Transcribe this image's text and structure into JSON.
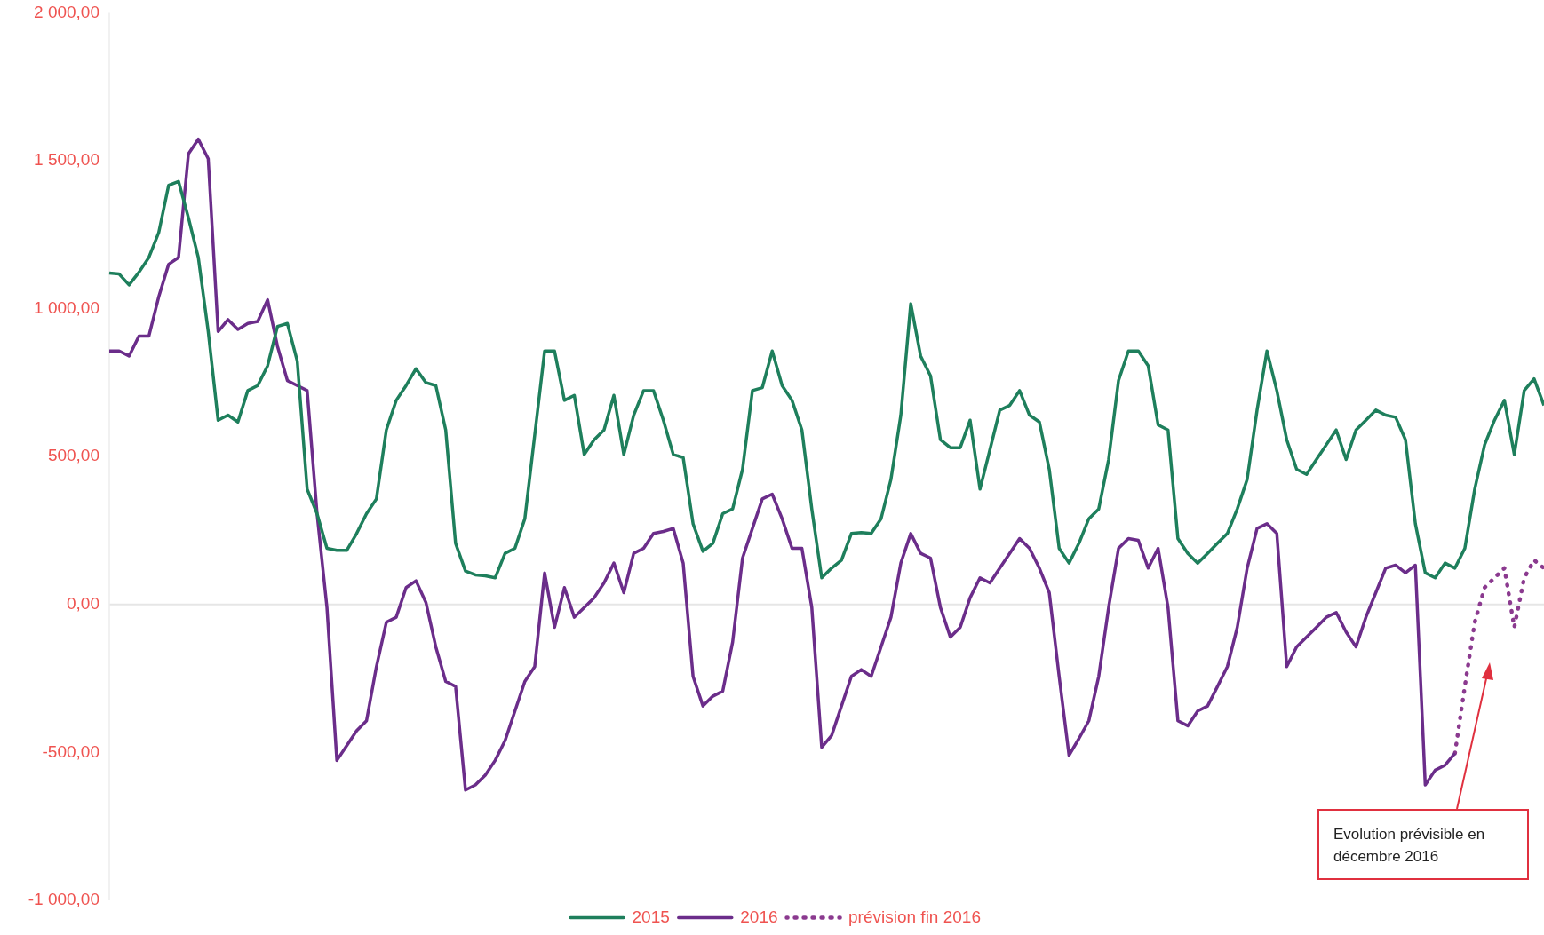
{
  "chart_data": {
    "type": "line",
    "categories": [
      null,
      null,
      null,
      null,
      null,
      null,
      null,
      null,
      null,
      null,
      null,
      null,
      null,
      null,
      null,
      null,
      null,
      null,
      null,
      null,
      null,
      null,
      null,
      null,
      null,
      null,
      null,
      null,
      null,
      null,
      null,
      null,
      null,
      null,
      null,
      null,
      null,
      null,
      null,
      null,
      null,
      null,
      null,
      null,
      null,
      null,
      null,
      null,
      null,
      null,
      null,
      null,
      null,
      null,
      null,
      null,
      null,
      null,
      null,
      null,
      null,
      null,
      null,
      null,
      null,
      null,
      null,
      null,
      null,
      null,
      null,
      null,
      null,
      null,
      null,
      null,
      null,
      null,
      null,
      null,
      null,
      null,
      null,
      null,
      null,
      null,
      null,
      null,
      null,
      null,
      null,
      null,
      null,
      null,
      null,
      null,
      null,
      null,
      null,
      null,
      null,
      null,
      null,
      null,
      null,
      null,
      null,
      null,
      null,
      null,
      null,
      null,
      null,
      null,
      null,
      null,
      null,
      null,
      null,
      null,
      null,
      null,
      null,
      null,
      null,
      null,
      null,
      null,
      null,
      null,
      null,
      null,
      null,
      null,
      null,
      null,
      null,
      null,
      null,
      null,
      null,
      null,
      null,
      null,
      null,
      null
    ],
    "series": [
      {
        "name": "2015",
        "color": "#1e7f5c",
        "line_style": "solid",
        "values": [
          1120,
          1117,
          1080,
          1123,
          1173,
          1257,
          1417,
          1430,
          1307,
          1173,
          923,
          623,
          640,
          617,
          723,
          740,
          807,
          940,
          950,
          823,
          390,
          307,
          190,
          183,
          183,
          240,
          307,
          357,
          590,
          690,
          740,
          797,
          750,
          740,
          590,
          207,
          113,
          100,
          97,
          90,
          173,
          190,
          290,
          573,
          857,
          857,
          690,
          707,
          507,
          557,
          590,
          707,
          507,
          640,
          723,
          723,
          623,
          507,
          497,
          273,
          180,
          207,
          307,
          323,
          457,
          723,
          733,
          857,
          740,
          690,
          590,
          323,
          90,
          123,
          150,
          240,
          243,
          240,
          290,
          423,
          640,
          1017,
          840,
          773,
          557,
          530,
          530,
          623,
          390,
          523,
          657,
          673,
          723,
          640,
          617,
          457,
          190,
          140,
          207,
          290,
          323,
          490,
          757,
          857,
          857,
          807,
          607,
          590,
          223,
          173,
          140,
          173,
          207,
          240,
          323,
          423,
          657,
          857,
          723,
          557,
          457,
          440,
          490,
          540,
          590,
          490,
          590,
          623,
          657,
          640,
          633,
          557,
          273,
          107,
          90,
          140,
          123,
          190,
          390,
          540,
          623,
          690,
          507,
          723,
          763,
          673
        ]
      },
      {
        "name": "2016",
        "color": "#6b2d8a",
        "line_style": "solid",
        "values": [
          857,
          857,
          840,
          907,
          907,
          1040,
          1150,
          1173,
          1523,
          1573,
          1507,
          923,
          963,
          930,
          950,
          957,
          1030,
          873,
          757,
          740,
          723,
          307,
          -10,
          -527,
          -477,
          -427,
          -393,
          -210,
          -60,
          -43,
          57,
          80,
          7,
          -143,
          -260,
          -277,
          -627,
          -610,
          -577,
          -527,
          -460,
          -360,
          -260,
          -210,
          107,
          -77,
          57,
          -43,
          -10,
          23,
          73,
          140,
          40,
          173,
          190,
          240,
          247,
          257,
          140,
          -243,
          -343,
          -310,
          -293,
          -127,
          157,
          257,
          357,
          373,
          290,
          190,
          190,
          -10,
          -483,
          -443,
          -343,
          -243,
          -220,
          -243,
          -143,
          -43,
          140,
          240,
          173,
          157,
          -10,
          -110,
          -77,
          23,
          90,
          73,
          123,
          173,
          223,
          190,
          123,
          40,
          -243,
          -510,
          -453,
          -393,
          -243,
          -10,
          190,
          223,
          217,
          123,
          190,
          -10,
          -393,
          -410,
          -360,
          -343,
          -277,
          -210,
          -77,
          123,
          257,
          273,
          240,
          -210,
          -143,
          -110,
          -77,
          -43,
          -27,
          -93,
          -143,
          -43,
          40,
          123,
          133,
          107,
          133,
          -610,
          -560,
          -543,
          -503,
          null,
          null,
          null,
          null,
          null,
          null,
          null,
          null,
          null
        ]
      },
      {
        "name": "prévision fin 2016",
        "color": "#8b3a8f",
        "line_style": "dotted",
        "values": [
          null,
          null,
          null,
          null,
          null,
          null,
          null,
          null,
          null,
          null,
          null,
          null,
          null,
          null,
          null,
          null,
          null,
          null,
          null,
          null,
          null,
          null,
          null,
          null,
          null,
          null,
          null,
          null,
          null,
          null,
          null,
          null,
          null,
          null,
          null,
          null,
          null,
          null,
          null,
          null,
          null,
          null,
          null,
          null,
          null,
          null,
          null,
          null,
          null,
          null,
          null,
          null,
          null,
          null,
          null,
          null,
          null,
          null,
          null,
          null,
          null,
          null,
          null,
          null,
          null,
          null,
          null,
          null,
          null,
          null,
          null,
          null,
          null,
          null,
          null,
          null,
          null,
          null,
          null,
          null,
          null,
          null,
          null,
          null,
          null,
          null,
          null,
          null,
          null,
          null,
          null,
          null,
          null,
          null,
          null,
          null,
          null,
          null,
          null,
          null,
          null,
          null,
          null,
          null,
          null,
          null,
          null,
          null,
          null,
          null,
          null,
          null,
          null,
          null,
          null,
          null,
          null,
          null,
          null,
          null,
          null,
          null,
          null,
          null,
          null,
          null,
          null,
          null,
          null,
          null,
          null,
          null,
          null,
          null,
          null,
          null,
          -503,
          -277,
          -60,
          57,
          90,
          123,
          -77,
          90,
          150,
          123
        ]
      }
    ],
    "ylim": [
      -1000,
      2000
    ],
    "yticks": [
      {
        "value": -1000,
        "label": "-1 000,00"
      },
      {
        "value": -500,
        "label": "-500,00"
      },
      {
        "value": 0,
        "label": "0,00"
      },
      {
        "value": 500,
        "label": "500,00"
      },
      {
        "value": 1000,
        "label": "1 000,00"
      },
      {
        "value": 1500,
        "label": "1 500,00"
      },
      {
        "value": 2000,
        "label": "2 000,00"
      }
    ],
    "tick_labels": "y",
    "grid": false,
    "marker": "none",
    "legend": "bottom",
    "ref_lines": [
      {
        "axis": "y",
        "value": 0,
        "color": "#e6e6e6"
      }
    ],
    "annotations": [
      "Evolution prévisible en décembre 2016"
    ]
  }
}
